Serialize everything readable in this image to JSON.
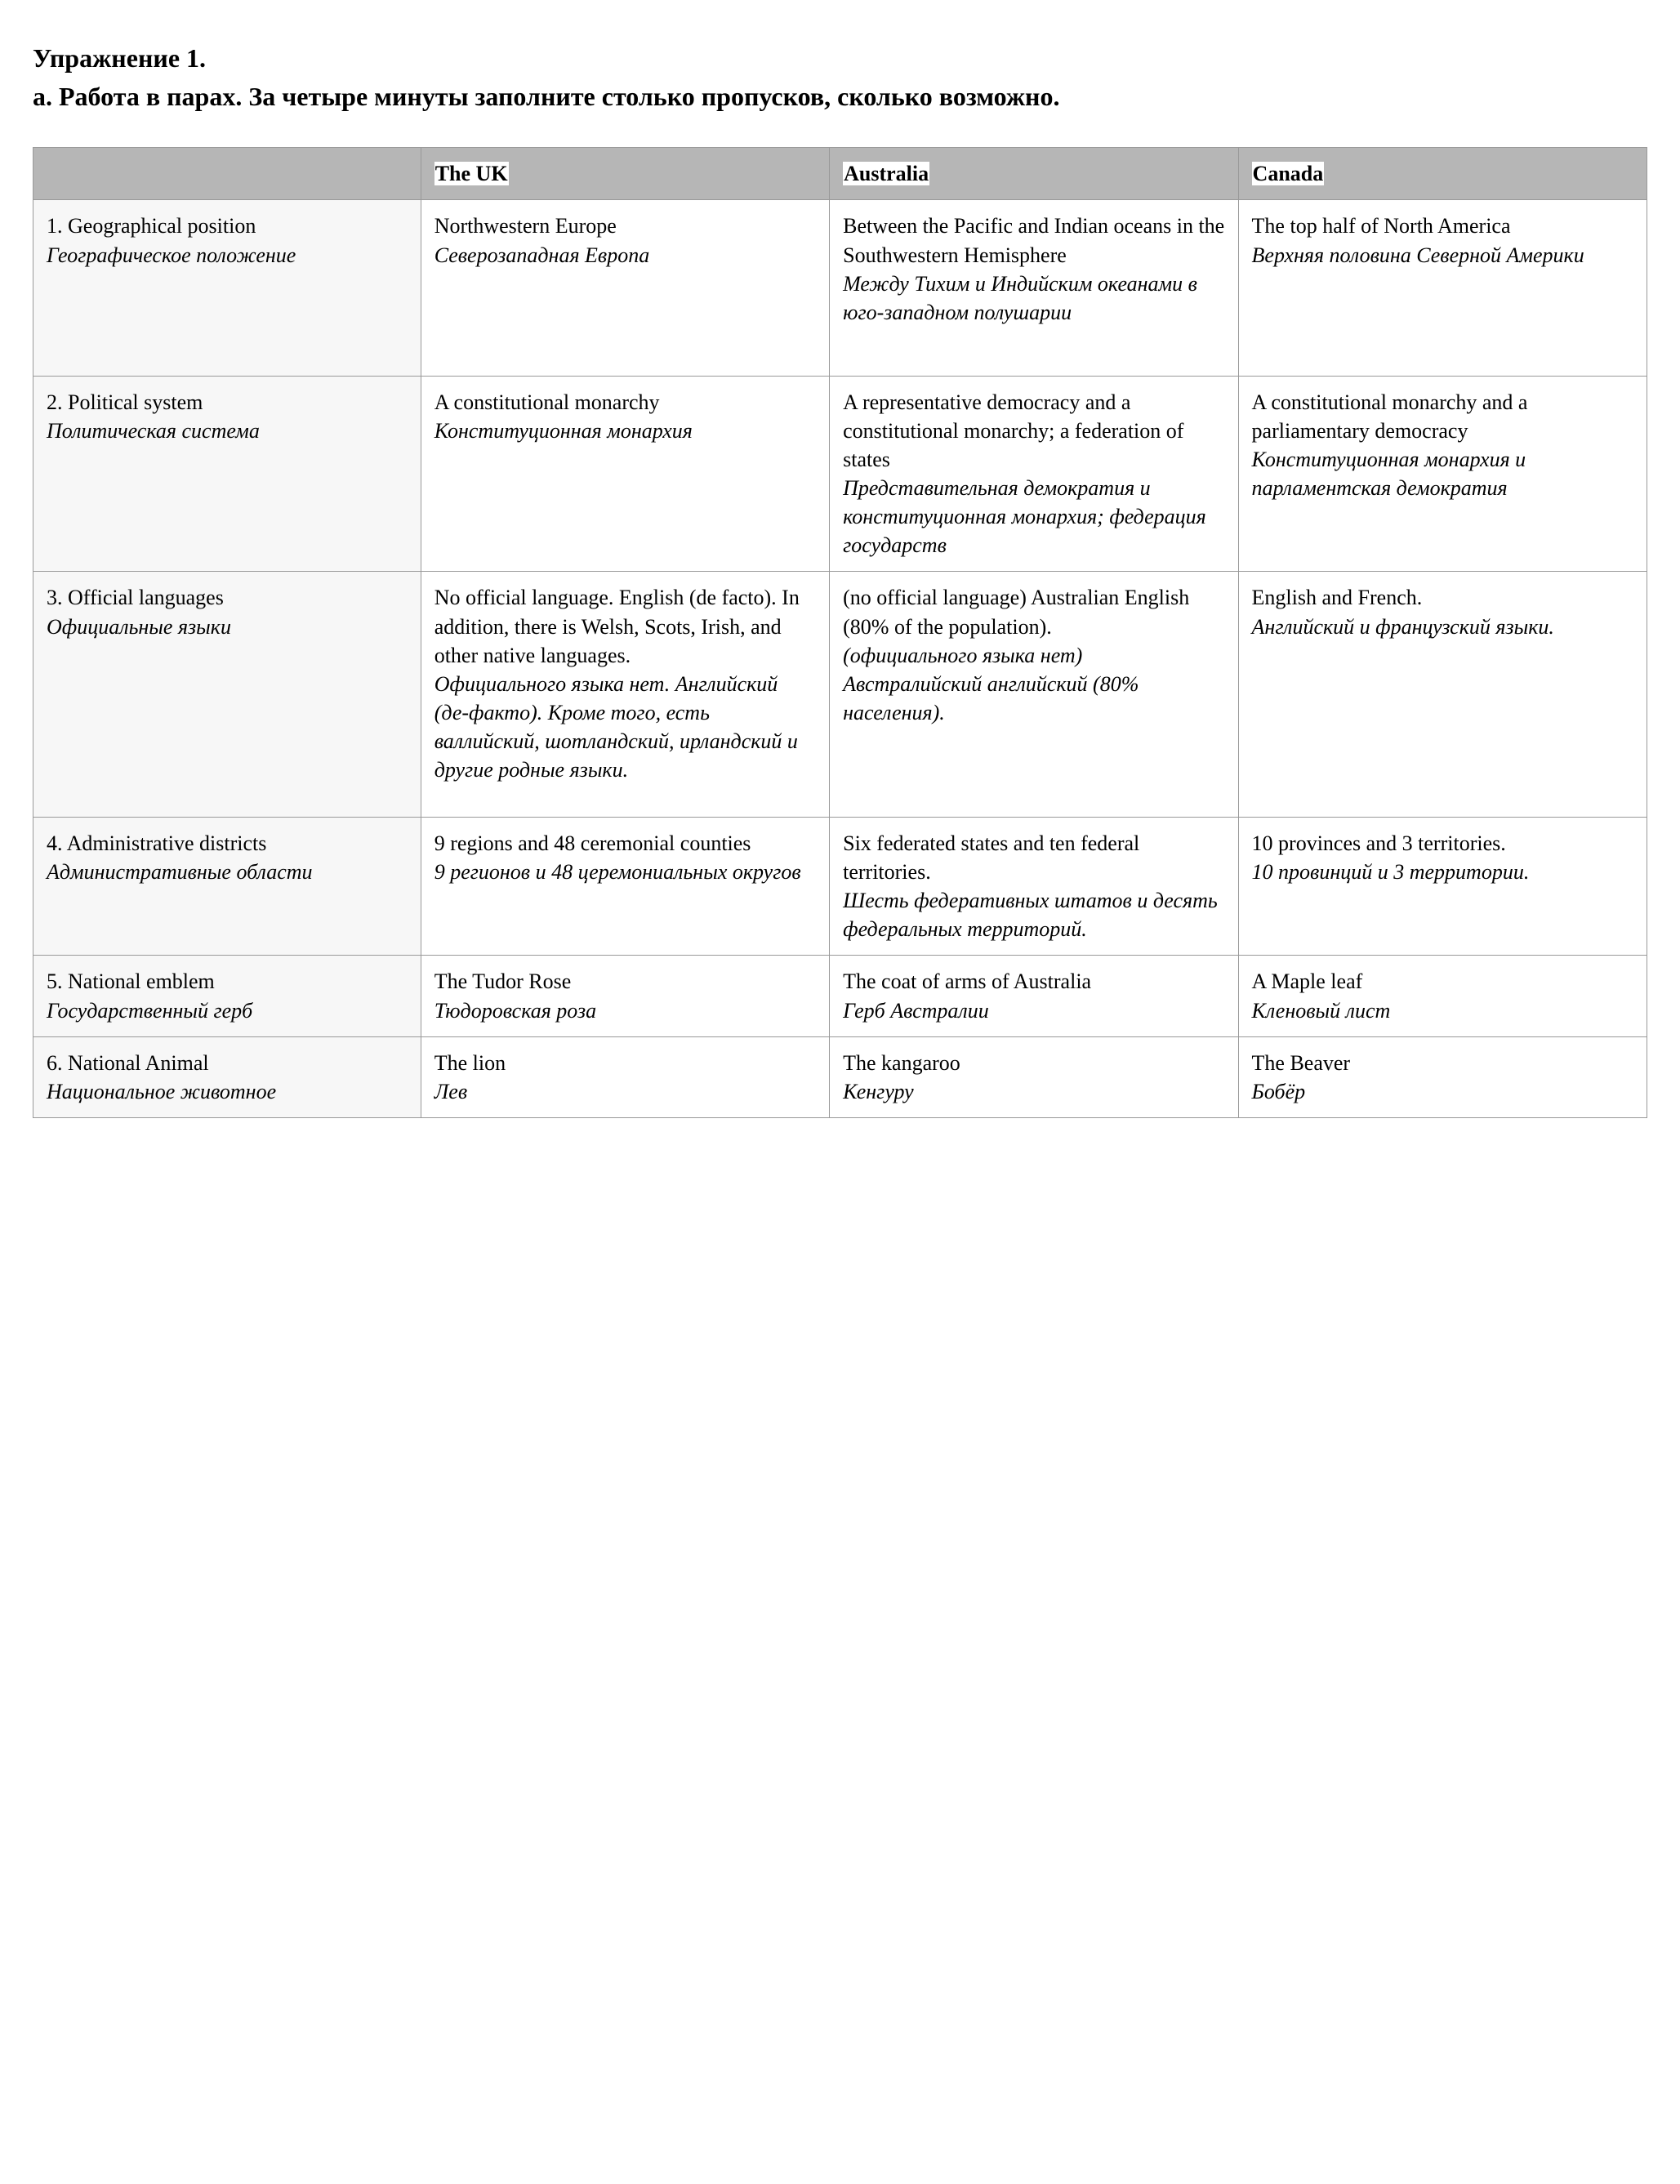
{
  "title": "Упражнение 1.",
  "subtitle": "а. Работа в  парах. За четыре минуты заполните столько пропусков, сколько возможно.",
  "columns": {
    "blank": "",
    "uk": "The UK",
    "australia": "Australia",
    "canada": "Canada"
  },
  "rows": {
    "geo": {
      "label_en": "1. Geographical position",
      "label_ru": "Географическое положение",
      "uk_en": "Northwestern Europe",
      "uk_ru": "Северозападная Европа",
      "au_en": "Between the Pacific and Indian oceans in the Southwestern Hemisphere",
      "au_ru": "Между Тихим и Индийским океанами в юго-западном полушарии",
      "ca_en": "The top half of North America",
      "ca_ru": "Верхняя половина Северной Америки"
    },
    "political": {
      "label_en": "2. Political system",
      "label_ru": "Политическая система",
      "uk_en": "A constitutional monarchy",
      "uk_ru": "Конституционная монархия",
      "au_en": "A representative democracy and a constitutional monarchy; a federation of states",
      "au_ru": "Представительная демократия и конституционная монархия; федерация государств",
      "ca_en": "A constitutional monarchy and a parliamentary democracy",
      "ca_ru": "Конституционная монархия и парламентская демократия"
    },
    "languages": {
      "label_en": "3. Official languages",
      "label_ru": "Официальные языки",
      "uk_en": "No official language. English (de facto). In addition, there is Welsh, Scots, Irish, and other native languages.",
      "uk_ru": "Официального языка нет. Английский (де-факто). Кроме того, есть валлийский, шотландский, ирландский и другие родные языки.",
      "au_en": "(no official language) Australian English (80% of the population).",
      "au_ru": "(официального языка нет) Австралийский английский (80% населения).",
      "ca_en": "English and French.",
      "ca_ru": "Английский и французский языки."
    },
    "admin": {
      "label_en": "4. Administrative districts",
      "label_ru": "Административные области",
      "uk_en": "9 regions and 48 ceremonial counties",
      "uk_ru": "9 регионов и 48 церемониальных округов",
      "au_en": "Six federated states and ten federal territories.",
      "au_ru": "Шесть федеративных штатов и десять федеральных территорий.",
      "ca_en": "10 provinces and 3 territories.",
      "ca_ru": "10 провинций и 3 территории."
    },
    "emblem": {
      "label_en": "5. National emblem",
      "label_ru": "Государственный герб",
      "uk_en": "The Tudor Rose",
      "uk_ru": "Тюдоровская роза",
      "au_en": "The coat of arms of Australia",
      "au_ru": "Герб Австралии",
      "ca_en": "A Maple leaf",
      "ca_ru": "Кленовый лист"
    },
    "animal": {
      "label_en": "6. National Animal",
      "label_ru": "Национальное животное",
      "uk_en": "The lion",
      "uk_ru": "Лев",
      "au_en": "The kangaroo",
      "au_ru": "Кенгуру",
      "ca_en": "The Beaver",
      "ca_ru": "Бобёр"
    }
  }
}
